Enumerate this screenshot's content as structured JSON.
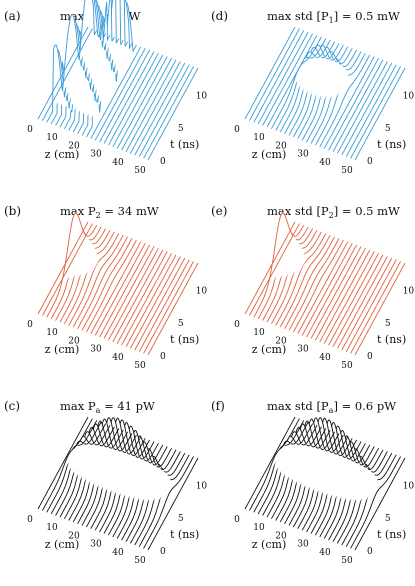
{
  "chart_data": [
    {
      "type": "waterfall-line",
      "panel_label": "(a)",
      "title": {
        "pre": "max P",
        "sub": "1",
        "post": " = 1 W"
      },
      "color": "#3a9ad9",
      "xlabel": "z (cm)",
      "ylabel": "t (ns)",
      "z_ticks": [
        0,
        10,
        20,
        30,
        40,
        50
      ],
      "t_ticks": [
        0,
        5,
        10
      ],
      "z_range": [
        0,
        50
      ],
      "t_range": [
        0,
        14
      ],
      "n_traces": 26,
      "pulse": {
        "kind": "periodic",
        "start_z": 3,
        "end_z": 22,
        "cycles": 3
      }
    },
    {
      "type": "waterfall-line",
      "panel_label": "(b)",
      "title": {
        "pre": "max P",
        "sub": "2",
        "post": " = 34 mW"
      },
      "color": "#e0603a",
      "xlabel": "z (cm)",
      "ylabel": "t (ns)",
      "z_ticks": [
        0,
        10,
        20,
        30,
        40,
        50
      ],
      "t_ticks": [
        0,
        5,
        10
      ],
      "z_range": [
        0,
        50
      ],
      "t_range": [
        0,
        14
      ],
      "n_traces": 26,
      "pulse": {
        "kind": "decay",
        "start_z": 3,
        "end_z": 22
      }
    },
    {
      "type": "waterfall-line",
      "panel_label": "(c)",
      "title": {
        "pre": "max P",
        "sub": "a",
        "post": " = 41 pW"
      },
      "color": "#111111",
      "xlabel": "z (cm)",
      "ylabel": "t (ns)",
      "z_ticks": [
        0,
        10,
        20,
        30,
        40,
        50
      ],
      "t_ticks": [
        0,
        5,
        10
      ],
      "z_range": [
        0,
        50
      ],
      "t_range": [
        0,
        14
      ],
      "n_traces": 26,
      "pulse": {
        "kind": "rise-fall",
        "start_z": 0,
        "end_z": 50
      }
    },
    {
      "type": "waterfall-line",
      "panel_label": "(d)",
      "title": {
        "pre": "max std [P",
        "sub": "1",
        "post": "] = 0.5 mW"
      },
      "color": "#3a9ad9",
      "xlabel": "z (cm)",
      "ylabel": "t (ns)",
      "z_ticks": [
        0,
        10,
        20,
        30,
        40,
        50
      ],
      "t_ticks": [
        0,
        5,
        10
      ],
      "z_range": [
        0,
        50
      ],
      "t_range": [
        0,
        14
      ],
      "n_traces": 26,
      "pulse": {
        "kind": "bump",
        "start_z": 10,
        "end_z": 35
      }
    },
    {
      "type": "waterfall-line",
      "panel_label": "(e)",
      "title": {
        "pre": "max std [P",
        "sub": "2",
        "post": "] = 0.5 mW"
      },
      "color": "#e0603a",
      "xlabel": "z (cm)",
      "ylabel": "t (ns)",
      "z_ticks": [
        0,
        10,
        20,
        30,
        40,
        50
      ],
      "t_ticks": [
        0,
        5,
        10
      ],
      "z_range": [
        0,
        50
      ],
      "t_range": [
        0,
        14
      ],
      "n_traces": 26,
      "pulse": {
        "kind": "decay",
        "start_z": 3,
        "end_z": 22
      }
    },
    {
      "type": "waterfall-line",
      "panel_label": "(f)",
      "title": {
        "pre": "max std [P",
        "sub": "a",
        "post": "] = 0.6 pW"
      },
      "color": "#111111",
      "xlabel": "z (cm)",
      "ylabel": "t (ns)",
      "z_ticks": [
        0,
        10,
        20,
        30,
        40,
        50
      ],
      "t_ticks": [
        0,
        5,
        10
      ],
      "z_range": [
        0,
        50
      ],
      "t_range": [
        0,
        14
      ],
      "n_traces": 26,
      "pulse": {
        "kind": "rise-fall",
        "start_z": 0,
        "end_z": 50
      }
    }
  ]
}
